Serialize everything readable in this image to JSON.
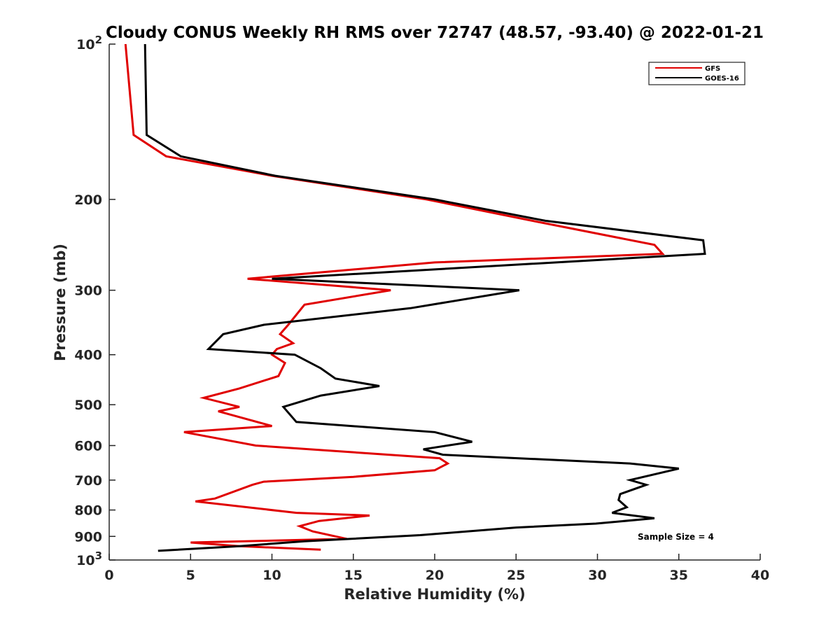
{
  "chart_data": {
    "type": "line",
    "title": "Cloudy CONUS Weekly RH RMS over 72747 (48.57, -93.40) @ 2022-01-21",
    "xlabel": "Relative Humidity (%)",
    "ylabel": "Pressure (mb)",
    "xlim": [
      0,
      40
    ],
    "ylim": [
      100,
      1000
    ],
    "yscale": "log",
    "y_reversed": true,
    "xticks": [
      0,
      5,
      10,
      15,
      20,
      25,
      30,
      35,
      40
    ],
    "xtick_labels": [
      "0",
      "5",
      "10",
      "15",
      "20",
      "25",
      "30",
      "35",
      "40"
    ],
    "yticks": [
      100,
      200,
      300,
      400,
      500,
      600,
      700,
      800,
      900,
      1000
    ],
    "ytick_labels": [
      {
        "base": "10",
        "exp": "2"
      },
      {
        "base": "200"
      },
      {
        "base": "300"
      },
      {
        "base": "400"
      },
      {
        "base": "500"
      },
      {
        "base": "600"
      },
      {
        "base": "700"
      },
      {
        "base": "800"
      },
      {
        "base": "900"
      },
      {
        "base": "10",
        "exp": "3"
      }
    ],
    "legend_position": "top-right",
    "annotation": "Sample Size = 4",
    "series": [
      {
        "name": "GFS",
        "color": "#e00000",
        "points": [
          [
            1.0,
            100
          ],
          [
            1.5,
            150
          ],
          [
            3.5,
            165
          ],
          [
            10.0,
            180
          ],
          [
            19.5,
            200
          ],
          [
            26.0,
            220
          ],
          [
            33.5,
            245
          ],
          [
            34.0,
            255
          ],
          [
            20.0,
            265
          ],
          [
            8.5,
            285
          ],
          [
            17.3,
            300
          ],
          [
            12.0,
            320
          ],
          [
            11.0,
            350
          ],
          [
            10.5,
            365
          ],
          [
            11.3,
            380
          ],
          [
            10.3,
            390
          ],
          [
            10.0,
            400
          ],
          [
            10.8,
            415
          ],
          [
            10.4,
            440
          ],
          [
            8.0,
            465
          ],
          [
            5.8,
            485
          ],
          [
            8.0,
            505
          ],
          [
            6.7,
            515
          ],
          [
            10.0,
            550
          ],
          [
            4.6,
            565
          ],
          [
            9.0,
            600
          ],
          [
            20.3,
            635
          ],
          [
            20.8,
            650
          ],
          [
            20.0,
            670
          ],
          [
            15.0,
            690
          ],
          [
            9.5,
            705
          ],
          [
            8.8,
            715
          ],
          [
            6.5,
            760
          ],
          [
            5.3,
            770
          ],
          [
            11.5,
            810
          ],
          [
            16.0,
            820
          ],
          [
            12.9,
            840
          ],
          [
            11.7,
            860
          ],
          [
            12.5,
            880
          ],
          [
            14.6,
            910
          ],
          [
            5.0,
            925
          ],
          [
            8.0,
            940
          ],
          [
            13.0,
            955
          ]
        ]
      },
      {
        "name": "GOES-16",
        "color": "#000000",
        "points": [
          [
            2.2,
            100
          ],
          [
            2.3,
            150
          ],
          [
            4.4,
            165
          ],
          [
            10.2,
            180
          ],
          [
            20.0,
            200
          ],
          [
            26.8,
            220
          ],
          [
            36.5,
            240
          ],
          [
            36.6,
            255
          ],
          [
            10.0,
            285
          ],
          [
            25.2,
            300
          ],
          [
            18.5,
            325
          ],
          [
            9.5,
            350
          ],
          [
            7.0,
            365
          ],
          [
            6.1,
            390
          ],
          [
            11.4,
            400
          ],
          [
            13.0,
            425
          ],
          [
            13.9,
            445
          ],
          [
            16.6,
            460
          ],
          [
            13.0,
            480
          ],
          [
            10.7,
            505
          ],
          [
            11.5,
            540
          ],
          [
            20.0,
            565
          ],
          [
            22.3,
            590
          ],
          [
            19.3,
            610
          ],
          [
            20.5,
            625
          ],
          [
            32.0,
            650
          ],
          [
            35.0,
            665
          ],
          [
            32.0,
            700
          ],
          [
            33.0,
            715
          ],
          [
            31.4,
            745
          ],
          [
            31.3,
            765
          ],
          [
            31.8,
            790
          ],
          [
            30.9,
            810
          ],
          [
            33.5,
            830
          ],
          [
            29.9,
            850
          ],
          [
            25.0,
            865
          ],
          [
            19.1,
            895
          ],
          [
            12.0,
            920
          ],
          [
            8.0,
            940
          ],
          [
            3.0,
            960
          ]
        ]
      }
    ]
  }
}
